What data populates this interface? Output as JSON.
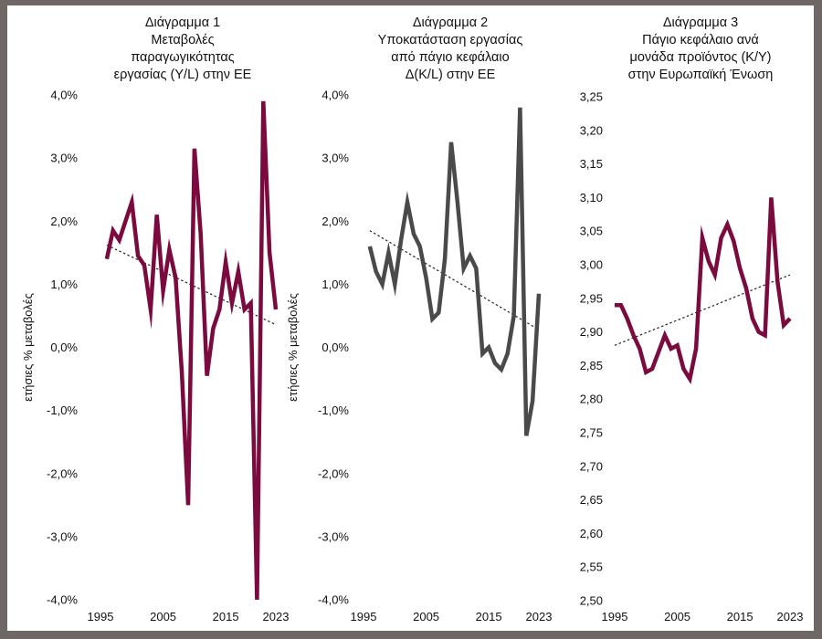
{
  "colors": {
    "background": "#ffffff",
    "frame": "#6e6766",
    "series_chart1": "#7b0a3e",
    "series_chart2": "#4a4a4a",
    "series_chart3": "#7b0a3e",
    "trendline": "#222222"
  },
  "chart_data": [
    {
      "type": "line",
      "title": [
        "Διάγραμμα 1",
        "Μεταβολές",
        "παραγωγικότητας",
        "εργασίας (Y/L) στην ΕΕ"
      ],
      "ylabel": "ετήσιες % μεταβολές",
      "xlabel": "",
      "ylim": [
        -4.0,
        4.0
      ],
      "yticks": [
        "4,0%",
        "3,0%",
        "2,0%",
        "1,0%",
        "0,0%",
        "-1,0%",
        "-2,0%",
        "-3,0%",
        "-4,0%"
      ],
      "ytick_values": [
        4,
        3,
        2,
        1,
        0,
        -1,
        -2,
        -3,
        -4
      ],
      "xlim": [
        1995,
        2023
      ],
      "xticks": [
        "1995",
        "2005",
        "2015",
        "2023"
      ],
      "xtick_values": [
        1995,
        2005,
        2015,
        2023
      ],
      "x": [
        1996,
        1997,
        1998,
        1999,
        2000,
        2001,
        2002,
        2003,
        2004,
        2005,
        2006,
        2007,
        2008,
        2009,
        2010,
        2011,
        2012,
        2013,
        2014,
        2015,
        2016,
        2017,
        2018,
        2019,
        2020,
        2021,
        2022,
        2023
      ],
      "values": [
        1.4,
        1.85,
        1.7,
        2.0,
        2.3,
        1.45,
        1.3,
        0.6,
        2.1,
        0.9,
        1.55,
        1.1,
        -0.4,
        -2.5,
        3.15,
        1.8,
        -0.45,
        0.3,
        0.6,
        1.35,
        0.7,
        1.2,
        0.6,
        0.7,
        -4.0,
        3.9,
        1.5,
        0.6
      ],
      "trendline": {
        "x": [
          1996,
          2023
        ],
        "y": [
          1.62,
          0.36
        ]
      },
      "grid": false,
      "legend": "none"
    },
    {
      "type": "line",
      "title": [
        "Διάγραμμα 2",
        "Υποκατάσταση εργασίας",
        "από πάγιο κεφάλαιο",
        "Δ(K/L) στην ΕΕ"
      ],
      "ylabel": "ετήσιες % μεταβολές",
      "xlabel": "",
      "ylim": [
        -4.0,
        4.0
      ],
      "yticks": [
        "4,0%",
        "3,0%",
        "2,0%",
        "1,0%",
        "0,0%",
        "-1,0%",
        "-2,0%",
        "-3,0%",
        "-4,0%"
      ],
      "ytick_values": [
        4,
        3,
        2,
        1,
        0,
        -1,
        -2,
        -3,
        -4
      ],
      "xlim": [
        1995,
        2023
      ],
      "xticks": [
        "1995",
        "2005",
        "2015",
        "2023"
      ],
      "xtick_values": [
        1995,
        2005,
        2015,
        2023
      ],
      "x": [
        1996,
        1997,
        1998,
        1999,
        2000,
        2001,
        2002,
        2003,
        2004,
        2005,
        2006,
        2007,
        2008,
        2009,
        2010,
        2011,
        2012,
        2013,
        2014,
        2015,
        2016,
        2017,
        2018,
        2019,
        2020,
        2021,
        2022,
        2023
      ],
      "values": [
        1.6,
        1.2,
        1.0,
        1.5,
        1.0,
        1.7,
        2.3,
        1.8,
        1.6,
        1.1,
        0.45,
        0.55,
        1.4,
        3.25,
        2.3,
        1.25,
        1.45,
        1.25,
        -0.1,
        0.0,
        -0.25,
        -0.35,
        -0.1,
        0.5,
        3.8,
        -1.4,
        -0.85,
        0.85
      ],
      "trendline": {
        "x": [
          1996,
          2023
        ],
        "y": [
          1.85,
          0.28
        ]
      },
      "grid": false,
      "legend": "none"
    },
    {
      "type": "line",
      "title": [
        "Διάγραμμα 3",
        "Πάγιο κεφάλαιο ανά",
        "μονάδα προϊόντος (K/Y)",
        "στην Ευρωπαϊκή Ένωση"
      ],
      "ylabel": "",
      "xlabel": "",
      "ylim": [
        2.5,
        3.25
      ],
      "yticks": [
        "3,25",
        "3,20",
        "3,15",
        "3,10",
        "3,05",
        "3,00",
        "2,95",
        "2,90",
        "2,85",
        "2,80",
        "2,75",
        "2,70",
        "2,65",
        "2,60",
        "2,55",
        "2,50"
      ],
      "ytick_values": [
        3.25,
        3.2,
        3.15,
        3.1,
        3.05,
        3.0,
        2.95,
        2.9,
        2.85,
        2.8,
        2.75,
        2.7,
        2.65,
        2.6,
        2.55,
        2.5
      ],
      "xlim": [
        1995,
        2023
      ],
      "xticks": [
        "1995",
        "2005",
        "2015",
        "2023"
      ],
      "xtick_values": [
        1995,
        2005,
        2015,
        2023
      ],
      "x": [
        1995,
        1996,
        1997,
        1998,
        1999,
        2000,
        2001,
        2002,
        2003,
        2004,
        2005,
        2006,
        2007,
        2008,
        2009,
        2010,
        2011,
        2012,
        2013,
        2014,
        2015,
        2016,
        2017,
        2018,
        2019,
        2020,
        2021,
        2022,
        2023
      ],
      "values": [
        2.94,
        2.94,
        2.92,
        2.895,
        2.875,
        2.84,
        2.845,
        2.87,
        2.895,
        2.875,
        2.88,
        2.845,
        2.83,
        2.875,
        3.04,
        3.005,
        2.985,
        3.04,
        3.06,
        3.035,
        2.995,
        2.965,
        2.92,
        2.9,
        2.895,
        3.1,
        2.975,
        2.91,
        2.92
      ],
      "trendline": {
        "x": [
          1995,
          2023
        ],
        "y": [
          2.88,
          2.985
        ]
      },
      "grid": false,
      "legend": "none"
    }
  ]
}
